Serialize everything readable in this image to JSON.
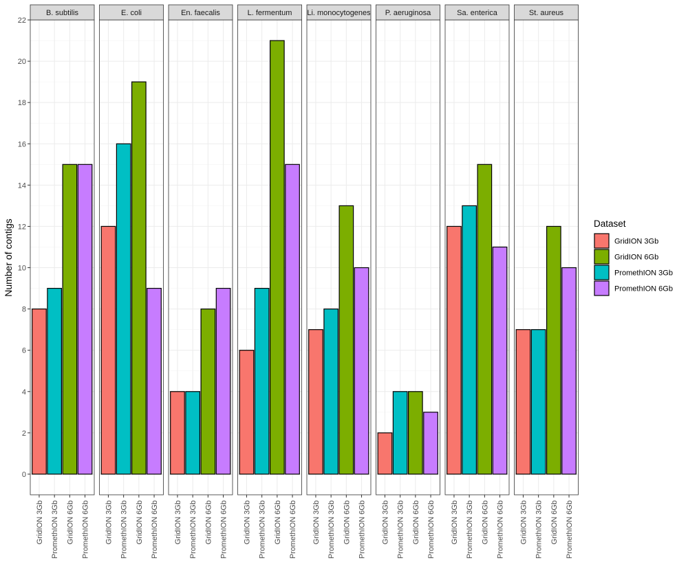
{
  "chart_data": {
    "type": "bar",
    "ylabel": "Number of contigs",
    "xlabel": "",
    "ylim": [
      -1,
      22
    ],
    "yticks": [
      0,
      2,
      4,
      6,
      8,
      10,
      12,
      14,
      16,
      18,
      20,
      22
    ],
    "categories": [
      "GridION 3Gb",
      "PromethION 3Gb",
      "GridION 6Gb",
      "PromethION 6Gb"
    ],
    "legend": {
      "title": "Dataset",
      "position": "right",
      "entries": [
        {
          "label": "GridION 3Gb",
          "color": "#F8766D"
        },
        {
          "label": "GridION 6Gb",
          "color": "#7CAE00"
        },
        {
          "label": "PromethION 3Gb",
          "color": "#00BFC4"
        },
        {
          "label": "PromethION 6Gb",
          "color": "#C77CFF"
        }
      ]
    },
    "category_colors": [
      "#F8766D",
      "#00BFC4",
      "#7CAE00",
      "#C77CFF"
    ],
    "facets": [
      {
        "label": "B. subtilis",
        "values": [
          8,
          9,
          15,
          15
        ]
      },
      {
        "label": "E. coli",
        "values": [
          12,
          16,
          19,
          9
        ]
      },
      {
        "label": "En. faecalis",
        "values": [
          4,
          4,
          8,
          9
        ]
      },
      {
        "label": "L. fermentum",
        "values": [
          6,
          9,
          21,
          15
        ]
      },
      {
        "label": "Li. monocytogenes",
        "values": [
          7,
          8,
          13,
          10
        ]
      },
      {
        "label": "P. aeruginosa",
        "values": [
          2,
          4,
          4,
          3
        ]
      },
      {
        "label": "Sa. enterica",
        "values": [
          12,
          13,
          15,
          11
        ]
      },
      {
        "label": "St. aureus",
        "values": [
          7,
          7,
          12,
          10
        ]
      }
    ]
  }
}
